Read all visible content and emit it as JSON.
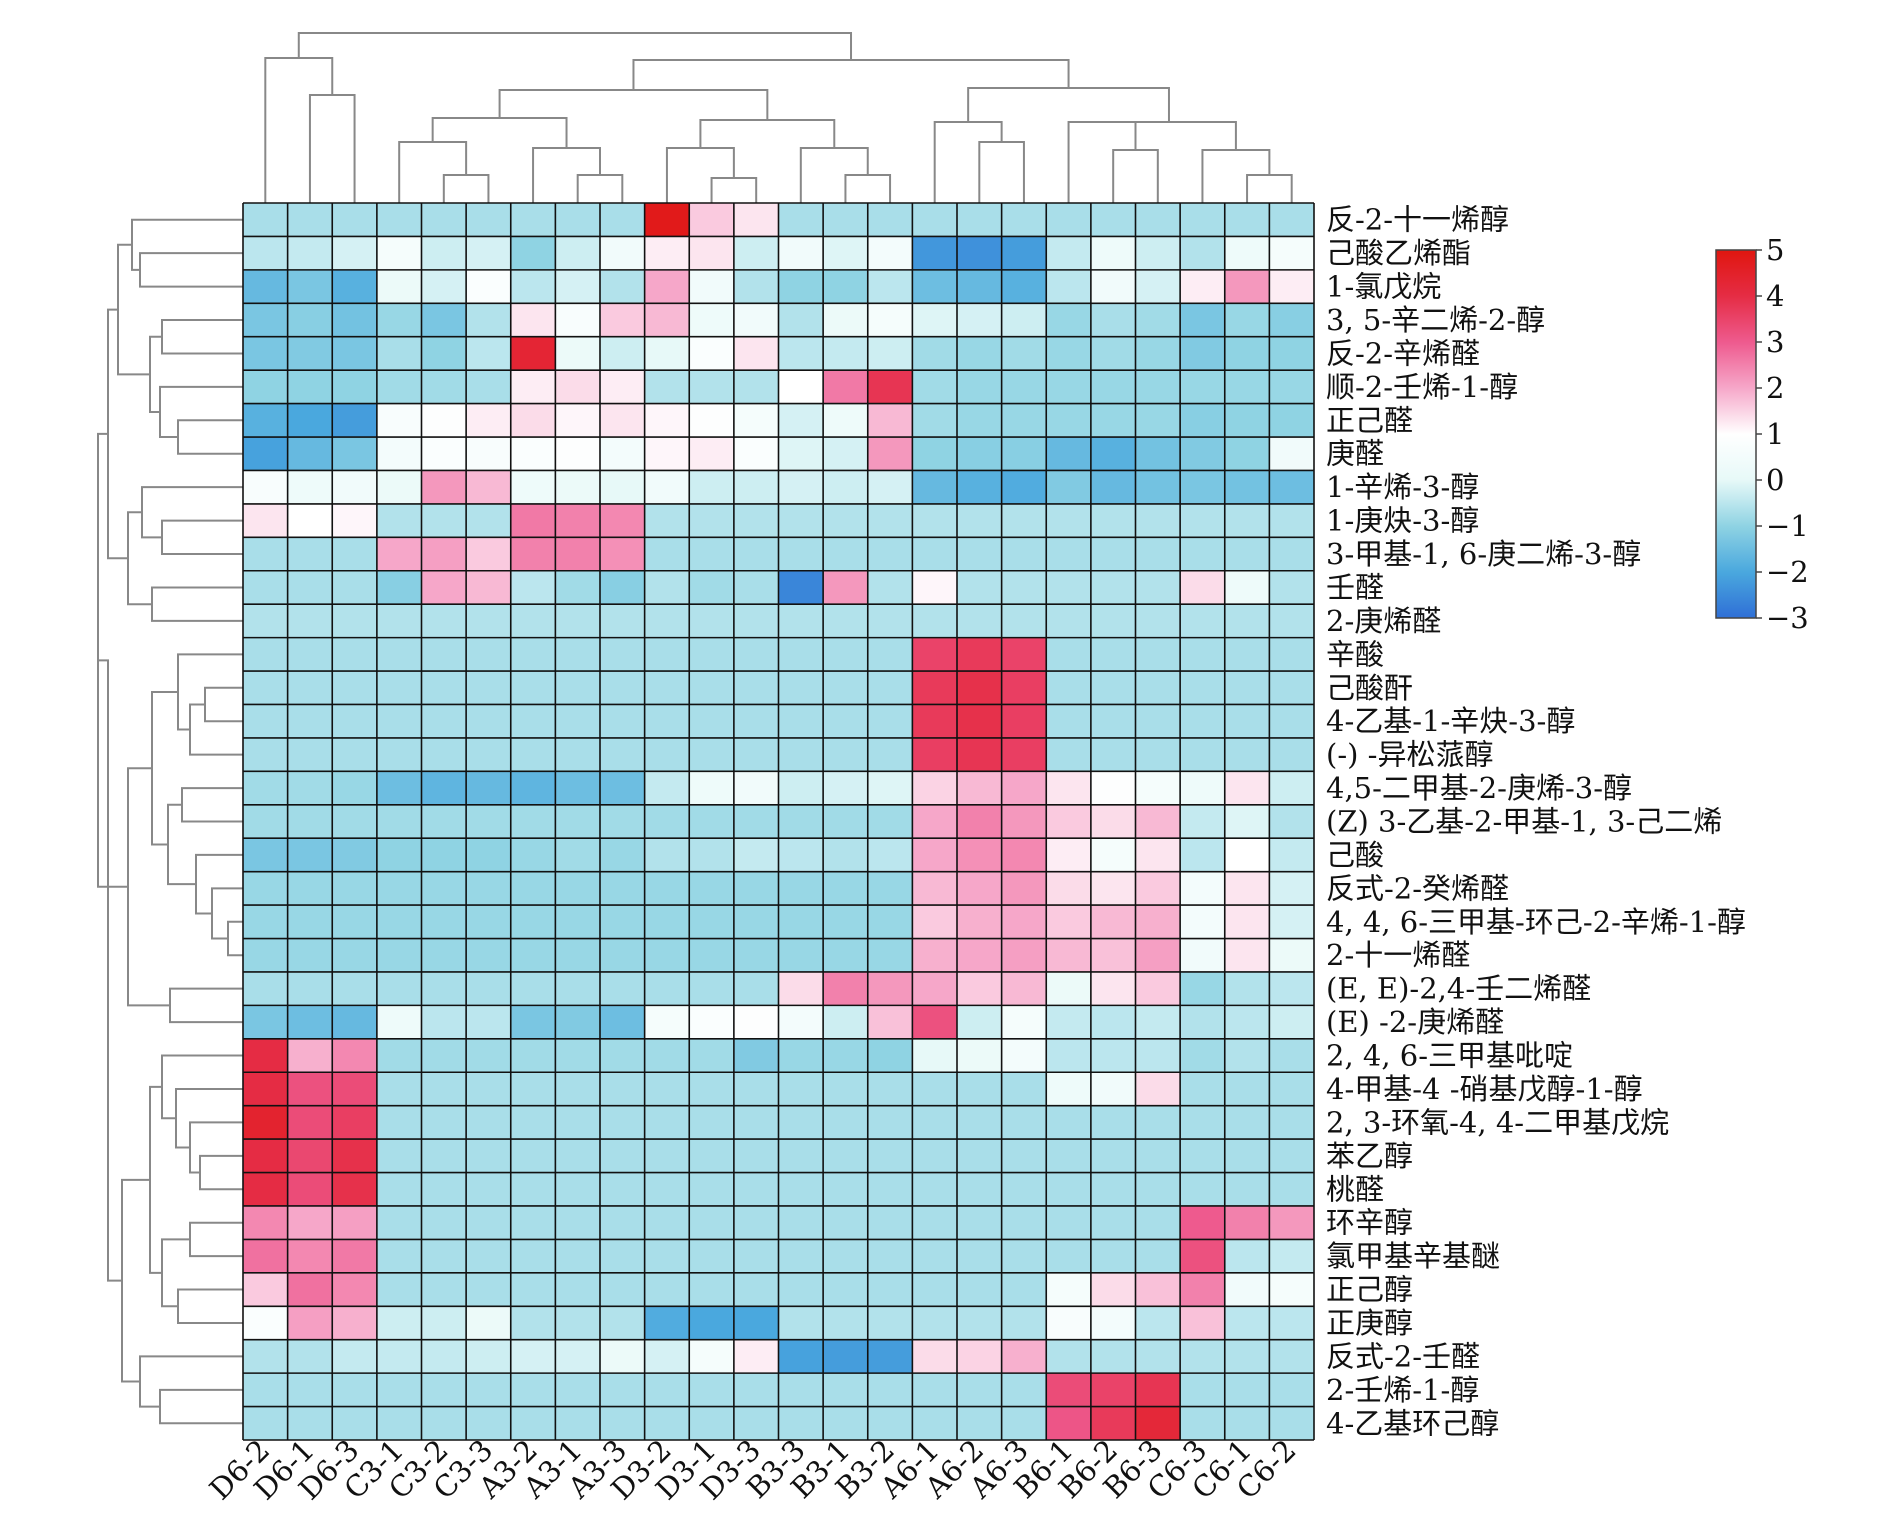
{
  "chart_data": {
    "type": "heatmap",
    "title": "",
    "xlabel": "",
    "ylabel": "",
    "columns": [
      "D6-2",
      "D6-1",
      "D6-3",
      "C3-1",
      "C3-2",
      "C3-3",
      "A3-2",
      "A3-1",
      "A3-3",
      "D3-2",
      "D3-1",
      "D3-3",
      "B3-3",
      "B3-1",
      "B3-2",
      "A6-1",
      "A6-2",
      "A6-3",
      "B6-1",
      "B6-2",
      "B6-3",
      "C6-3",
      "C6-1",
      "C6-2"
    ],
    "rows": [
      "反-2-十一烯醇",
      "己酸乙烯酯",
      "1-氯戊烷",
      "3, 5-辛二烯-2-醇",
      "反-2-辛烯醛",
      "顺-2-壬烯-1-醇",
      "正己醛",
      "庚醛",
      "1-辛烯-3-醇",
      "1-庚炔-3-醇",
      "3-甲基-1, 6-庚二烯-3-醇",
      "壬醛",
      "2-庚烯醛",
      "辛酸",
      "己酸酐",
      "4-乙基-1-辛炔-3-醇",
      "(-) -异松蒎醇",
      "4,5-二甲基-2-庚烯-3-醇",
      "(Z) 3-乙基-2-甲基-1, 3-己二烯",
      "己酸",
      "反式-2-癸烯醛",
      "4, 4, 6-三甲基-环己-2-辛烯-1-醇",
      "2-十一烯醛",
      "(E, E)-2,4-壬二烯醛",
      "(E) -2-庚烯醛",
      "2, 4, 6-三甲基吡啶",
      "4-甲基-4 -硝基戊醇-1-醇",
      "2, 3-环氧-4, 4-二甲基戊烷",
      "苯乙醇",
      "桃醛",
      "环辛醇",
      "氯甲基辛基醚",
      "正己醇",
      "正庚醇",
      "反式-2-壬醛",
      "2-壬烯-1-醇",
      "4-乙基环己醇"
    ],
    "values": [
      [
        -0.7,
        -0.7,
        -0.7,
        -0.7,
        -0.7,
        -0.7,
        -0.7,
        -0.7,
        -0.7,
        4.8,
        1.6,
        1.3,
        -0.7,
        -0.7,
        -0.7,
        -0.7,
        -0.7,
        -0.7,
        -0.7,
        -0.7,
        -0.7,
        -0.7,
        -0.7,
        -0.7
      ],
      [
        -0.5,
        -0.4,
        -0.2,
        0.6,
        -0.3,
        -0.2,
        -1.0,
        -0.3,
        0.4,
        1.2,
        1.3,
        -0.3,
        0.4,
        -0.1,
        0.5,
        -2.3,
        -2.4,
        -2.2,
        -0.4,
        0.3,
        -0.3,
        -0.6,
        0.3,
        0.6
      ],
      [
        -1.6,
        -1.3,
        -1.8,
        0.2,
        -0.2,
        0.8,
        -0.5,
        -0.2,
        -0.6,
        2.0,
        0.4,
        -0.6,
        -1.0,
        -1.0,
        -0.5,
        -1.5,
        -1.6,
        -1.8,
        -0.5,
        0.4,
        -0.2,
        1.2,
        2.2,
        1.2
      ],
      [
        -1.3,
        -1.1,
        -1.4,
        -0.9,
        -1.3,
        -0.6,
        1.3,
        0.7,
        1.6,
        1.8,
        0.3,
        0.4,
        -0.6,
        0.2,
        0.6,
        -0.1,
        -0.2,
        -0.3,
        -0.9,
        -0.7,
        -0.8,
        -1.3,
        -0.9,
        -1.1
      ],
      [
        -1.3,
        -1.2,
        -1.3,
        -0.7,
        -1.0,
        -0.5,
        4.3,
        0.2,
        -0.3,
        0.0,
        0.8,
        1.3,
        -0.5,
        -0.4,
        -0.3,
        -0.8,
        -0.9,
        -0.8,
        -0.9,
        -0.8,
        -0.9,
        -1.2,
        -1.0,
        -1.0
      ],
      [
        -1.0,
        -1.0,
        -1.0,
        -0.8,
        -0.8,
        -0.7,
        1.2,
        1.4,
        1.2,
        -0.6,
        -0.6,
        -0.6,
        1.0,
        2.6,
        3.8,
        -0.8,
        -0.9,
        -0.9,
        -0.9,
        -0.9,
        -0.9,
        -0.9,
        -0.9,
        -0.9
      ],
      [
        -1.8,
        -2.0,
        -2.2,
        0.7,
        0.9,
        1.2,
        1.4,
        1.1,
        1.3,
        1.1,
        0.9,
        0.6,
        -0.2,
        0.3,
        1.8,
        -0.8,
        -0.9,
        -0.9,
        -0.9,
        -0.9,
        -0.9,
        -1.1,
        -1.0,
        -1.0
      ],
      [
        -2.1,
        -1.6,
        -1.3,
        0.5,
        0.8,
        0.7,
        0.8,
        0.9,
        0.5,
        1.1,
        1.2,
        0.8,
        -0.1,
        -0.2,
        2.2,
        -1.0,
        -1.1,
        -1.1,
        -1.6,
        -1.8,
        -1.4,
        -1.2,
        -1.0,
        0.4
      ],
      [
        0.7,
        0.3,
        0.4,
        0.2,
        2.2,
        1.8,
        0.3,
        0.2,
        0.0,
        0.4,
        -0.3,
        -0.3,
        -0.2,
        -0.3,
        -0.2,
        -1.6,
        -1.8,
        -1.9,
        -1.2,
        -1.6,
        -1.4,
        -1.3,
        -1.4,
        -1.5
      ],
      [
        1.3,
        1.0,
        1.1,
        -0.6,
        -0.6,
        -0.6,
        2.6,
        2.5,
        2.4,
        -0.6,
        -0.6,
        -0.6,
        -0.6,
        -0.6,
        -0.6,
        -0.6,
        -0.6,
        -0.6,
        -0.6,
        -0.6,
        -0.6,
        -0.6,
        -0.6,
        -0.6
      ],
      [
        -0.7,
        -0.7,
        -0.7,
        2.0,
        2.1,
        1.6,
        2.5,
        2.5,
        2.3,
        -0.7,
        -0.7,
        -0.7,
        -0.7,
        -0.7,
        -0.7,
        -0.7,
        -0.7,
        -0.7,
        -0.7,
        -0.7,
        -0.7,
        -0.7,
        -0.7,
        -0.7
      ],
      [
        -0.7,
        -0.7,
        -0.7,
        -1.1,
        2.0,
        1.8,
        -0.5,
        -0.8,
        -1.1,
        -0.6,
        -0.8,
        -0.7,
        -2.6,
        2.2,
        -0.6,
        1.1,
        -0.6,
        -0.6,
        -0.6,
        -0.6,
        -0.6,
        1.4,
        0.3,
        -0.6
      ],
      [
        -0.6,
        -0.6,
        -0.6,
        -0.6,
        -0.6,
        -0.6,
        -0.6,
        -0.6,
        -0.6,
        -0.6,
        -0.6,
        -0.6,
        -0.6,
        -0.6,
        -0.6,
        -0.6,
        -0.6,
        -0.6,
        -0.6,
        -0.6,
        -0.6,
        -0.6,
        -0.6,
        -0.6
      ],
      [
        -0.7,
        -0.7,
        -0.7,
        -0.7,
        -0.7,
        -0.7,
        -0.7,
        -0.7,
        -0.7,
        -0.7,
        -0.7,
        -0.7,
        -0.7,
        -0.7,
        -0.7,
        3.5,
        3.7,
        3.5,
        -0.7,
        -0.7,
        -0.7,
        -0.7,
        -0.7,
        -0.7
      ],
      [
        -0.7,
        -0.7,
        -0.7,
        -0.7,
        -0.7,
        -0.7,
        -0.7,
        -0.7,
        -0.7,
        -0.7,
        -0.7,
        -0.7,
        -0.7,
        -0.7,
        -0.7,
        3.7,
        3.9,
        3.6,
        -0.7,
        -0.7,
        -0.7,
        -0.7,
        -0.7,
        -0.7
      ],
      [
        -0.7,
        -0.7,
        -0.7,
        -0.7,
        -0.7,
        -0.7,
        -0.7,
        -0.7,
        -0.7,
        -0.7,
        -0.7,
        -0.7,
        -0.7,
        -0.7,
        -0.7,
        3.7,
        3.9,
        3.6,
        -0.7,
        -0.7,
        -0.7,
        -0.7,
        -0.7,
        -0.7
      ],
      [
        -0.7,
        -0.7,
        -0.7,
        -0.7,
        -0.7,
        -0.7,
        -0.7,
        -0.7,
        -0.7,
        -0.7,
        -0.7,
        -0.7,
        -0.7,
        -0.7,
        -0.7,
        3.6,
        3.8,
        3.6,
        -0.7,
        -0.7,
        -0.7,
        -0.7,
        -0.7,
        -0.7
      ],
      [
        -0.8,
        -0.8,
        -0.9,
        -1.5,
        -1.7,
        -1.6,
        -1.7,
        -1.5,
        -1.5,
        -0.4,
        0.3,
        0.4,
        -0.3,
        -0.2,
        -0.1,
        1.5,
        1.8,
        2.0,
        1.3,
        0.9,
        0.6,
        0.3,
        1.3,
        -0.3
      ],
      [
        -0.8,
        -0.8,
        -0.8,
        -0.8,
        -0.8,
        -0.8,
        -0.8,
        -0.8,
        -0.8,
        -0.8,
        -0.8,
        -0.8,
        -0.8,
        -0.8,
        -0.8,
        2.0,
        2.5,
        2.2,
        1.6,
        1.4,
        1.8,
        -0.4,
        -0.1,
        -0.6
      ],
      [
        -1.3,
        -1.3,
        -1.2,
        -1.0,
        -1.0,
        -1.0,
        -0.9,
        -0.8,
        -0.9,
        -0.6,
        -0.6,
        -0.4,
        -0.5,
        -0.6,
        -0.5,
        2.0,
        2.3,
        2.4,
        1.2,
        0.6,
        1.3,
        -0.5,
        1.0,
        -0.4
      ],
      [
        -0.9,
        -0.9,
        -0.9,
        -0.9,
        -0.9,
        -0.9,
        -0.9,
        -0.9,
        -0.9,
        -0.9,
        -0.9,
        -0.9,
        -0.9,
        -0.9,
        -0.9,
        1.8,
        2.0,
        2.2,
        1.4,
        1.3,
        1.6,
        0.5,
        1.3,
        -0.2
      ],
      [
        -0.9,
        -0.9,
        -0.9,
        -0.9,
        -0.9,
        -0.9,
        -0.9,
        -0.9,
        -0.9,
        -0.9,
        -0.9,
        -0.9,
        -0.9,
        -0.9,
        -0.9,
        1.6,
        1.9,
        2.0,
        1.6,
        1.8,
        1.9,
        0.5,
        1.3,
        -0.2
      ],
      [
        -0.9,
        -0.9,
        -0.9,
        -0.9,
        -0.9,
        -0.9,
        -0.9,
        -0.9,
        -0.9,
        -0.9,
        -0.9,
        -0.9,
        -0.9,
        -0.9,
        -0.9,
        1.9,
        2.0,
        2.1,
        1.8,
        1.7,
        2.1,
        0.4,
        1.3,
        0.2
      ],
      [
        -0.7,
        -0.7,
        -0.7,
        -0.7,
        -0.7,
        -0.7,
        -0.7,
        -0.7,
        -0.7,
        -0.7,
        -0.7,
        -0.7,
        1.4,
        2.5,
        2.2,
        2.0,
        1.6,
        1.8,
        0.2,
        1.3,
        1.6,
        -0.9,
        -0.6,
        -0.5
      ],
      [
        -1.3,
        -1.5,
        -1.6,
        0.3,
        -0.5,
        -0.5,
        -1.3,
        -1.2,
        -1.5,
        0.6,
        0.8,
        0.9,
        0.5,
        -0.3,
        1.7,
        3.2,
        -0.3,
        0.6,
        -0.4,
        -0.5,
        -0.4,
        -0.6,
        -0.5,
        -0.3
      ],
      [
        4.0,
        1.9,
        2.4,
        -0.8,
        -0.8,
        -0.8,
        -0.8,
        -0.8,
        -0.8,
        -0.8,
        -0.8,
        -1.2,
        -0.9,
        -0.9,
        -1.0,
        0.0,
        0.2,
        0.5,
        -0.5,
        -0.5,
        -0.5,
        -0.8,
        -0.6,
        -0.7
      ],
      [
        4.0,
        3.2,
        3.3,
        -0.7,
        -0.7,
        -0.7,
        -0.7,
        -0.7,
        -0.7,
        -0.7,
        -0.7,
        -0.7,
        -0.7,
        -0.7,
        -0.7,
        -0.7,
        -0.7,
        -0.7,
        0.3,
        0.4,
        1.4,
        -0.7,
        -0.7,
        -0.7
      ],
      [
        4.4,
        3.3,
        3.6,
        -0.7,
        -0.7,
        -0.7,
        -0.7,
        -0.7,
        -0.7,
        -0.7,
        -0.7,
        -0.7,
        -0.7,
        -0.7,
        -0.7,
        -0.7,
        -0.7,
        -0.7,
        -0.7,
        -0.7,
        -0.7,
        -0.7,
        -0.7,
        -0.7
      ],
      [
        4.0,
        3.4,
        3.9,
        -0.7,
        -0.7,
        -0.7,
        -0.7,
        -0.7,
        -0.7,
        -0.7,
        -0.7,
        -0.7,
        -0.7,
        -0.7,
        -0.7,
        -0.7,
        -0.7,
        -0.7,
        -0.7,
        -0.7,
        -0.7,
        -0.7,
        -0.7,
        -0.7
      ],
      [
        4.0,
        3.3,
        3.9,
        -0.7,
        -0.7,
        -0.7,
        -0.7,
        -0.7,
        -0.7,
        -0.7,
        -0.7,
        -0.7,
        -0.7,
        -0.7,
        -0.7,
        -0.7,
        -0.7,
        -0.7,
        -0.7,
        -0.7,
        -0.7,
        -0.7,
        -0.7,
        -0.7
      ],
      [
        2.4,
        2.0,
        2.1,
        -0.7,
        -0.7,
        -0.7,
        -0.7,
        -0.7,
        -0.7,
        -0.7,
        -0.7,
        -0.7,
        -0.7,
        -0.7,
        -0.7,
        -0.7,
        -0.7,
        -0.7,
        -0.7,
        -0.7,
        -0.7,
        3.0,
        2.5,
        2.2
      ],
      [
        2.7,
        2.4,
        2.6,
        -0.7,
        -0.7,
        -0.7,
        -0.7,
        -0.7,
        -0.7,
        -0.7,
        -0.7,
        -0.7,
        -0.7,
        -0.7,
        -0.7,
        -0.7,
        -0.7,
        -0.7,
        -0.7,
        -0.7,
        -0.7,
        3.2,
        -0.5,
        -0.4
      ],
      [
        1.6,
        2.7,
        2.4,
        -0.7,
        -0.7,
        -0.7,
        -0.7,
        -0.7,
        -0.7,
        -0.7,
        -0.7,
        -0.7,
        -0.7,
        -0.7,
        -0.7,
        -0.7,
        -0.7,
        -0.7,
        0.6,
        1.4,
        1.7,
        2.5,
        0.4,
        0.6
      ],
      [
        0.8,
        2.1,
        1.9,
        -0.3,
        -0.3,
        0.2,
        -0.6,
        -0.6,
        -0.6,
        -1.9,
        -2.0,
        -2.0,
        -0.6,
        -0.6,
        -0.6,
        -0.6,
        -0.6,
        -0.6,
        0.7,
        0.5,
        -0.5,
        1.7,
        -0.5,
        -0.5
      ],
      [
        -0.6,
        -0.6,
        -0.4,
        -0.4,
        -0.4,
        -0.3,
        -0.2,
        -0.2,
        0.2,
        -0.2,
        0.6,
        1.2,
        -2.1,
        -2.2,
        -2.2,
        1.4,
        1.5,
        1.9,
        -0.6,
        -0.6,
        -0.6,
        -0.6,
        -0.6,
        -0.6
      ],
      [
        -0.7,
        -0.7,
        -0.7,
        -0.7,
        -0.7,
        -0.7,
        -0.7,
        -0.7,
        -0.7,
        -0.7,
        -0.7,
        -0.7,
        -0.7,
        -0.7,
        -0.7,
        -0.7,
        -0.7,
        -0.7,
        3.3,
        3.5,
        3.8,
        -0.7,
        -0.7,
        -0.7
      ],
      [
        -0.7,
        -0.7,
        -0.7,
        -0.7,
        -0.7,
        -0.7,
        -0.7,
        -0.7,
        -0.7,
        -0.7,
        -0.7,
        -0.7,
        -0.7,
        -0.7,
        -0.7,
        -0.7,
        -0.7,
        -0.7,
        3.1,
        3.7,
        4.2,
        -0.7,
        -0.7,
        -0.7
      ]
    ],
    "colorbar": {
      "ticks": [
        5,
        4,
        3,
        2,
        1,
        0,
        -1,
        -2,
        -3
      ],
      "tick_labels": [
        "5",
        "4",
        "3",
        "2",
        "1",
        "0",
        "−1",
        "−2",
        "−3"
      ],
      "range": [
        -3,
        5
      ],
      "stops": [
        {
          "v": -3,
          "color": "#2f6fd6"
        },
        {
          "v": -2,
          "color": "#4aa8de"
        },
        {
          "v": -1,
          "color": "#8fd3e3"
        },
        {
          "v": 0,
          "color": "#e7f9f8"
        },
        {
          "v": 1,
          "color": "#ffffff"
        },
        {
          "v": 2,
          "color": "#f6a7c9"
        },
        {
          "v": 3,
          "color": "#ee5a8e"
        },
        {
          "v": 4,
          "color": "#e52c44"
        },
        {
          "v": 5,
          "color": "#e0160f"
        }
      ]
    },
    "column_dendrogram": "present",
    "row_dendrogram": "present",
    "grid": true,
    "legend_position": "right"
  }
}
